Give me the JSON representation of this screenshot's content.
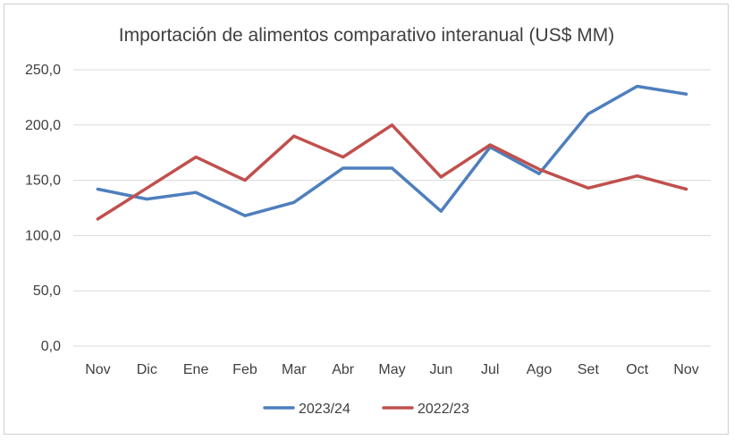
{
  "chart_data": {
    "type": "line",
    "title": "Importación de alimentos comparativo interanual (US$ MM)",
    "xlabel": "",
    "ylabel": "",
    "categories": [
      "Nov",
      "Dic",
      "Ene",
      "Feb",
      "Mar",
      "Abr",
      "May",
      "Jun",
      "Jul",
      "Ago",
      "Set",
      "Oct",
      "Nov"
    ],
    "ylim": [
      0,
      250
    ],
    "yticks": [
      0,
      50,
      100,
      150,
      200,
      250
    ],
    "ytick_labels": [
      "0,0",
      "50,0",
      "100,0",
      "150,0",
      "200,0",
      "250,0"
    ],
    "grid": true,
    "legend_position": "bottom",
    "series": [
      {
        "name": "2023/24",
        "color": "#4e7fbd",
        "values": [
          142,
          133,
          139,
          118,
          130,
          161,
          161,
          122,
          180,
          156,
          210,
          235,
          228
        ]
      },
      {
        "name": "2022/23",
        "color": "#c0504d",
        "values": [
          115,
          143,
          171,
          150,
          190,
          171,
          200,
          153,
          182,
          160,
          143,
          154,
          142
        ]
      }
    ]
  }
}
